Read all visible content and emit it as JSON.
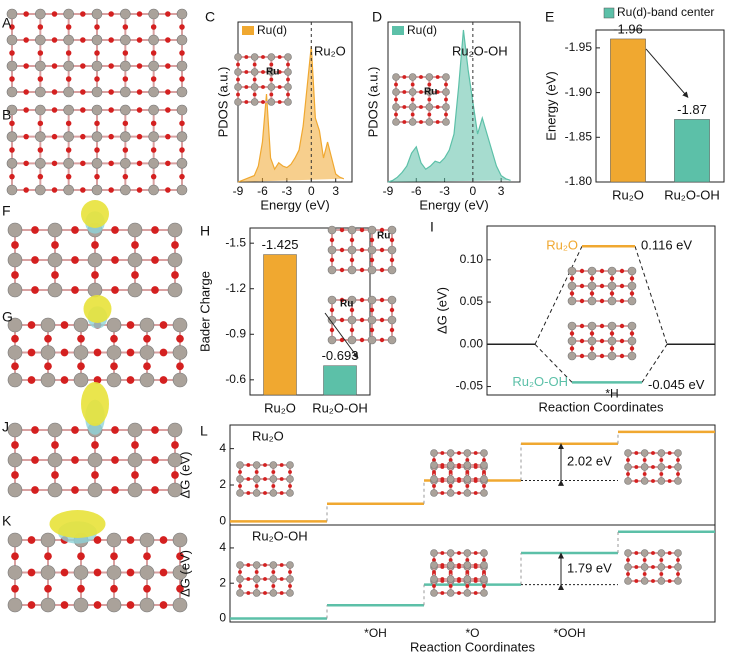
{
  "structure_panels": [
    "A",
    "B",
    "F",
    "G",
    "J",
    "K"
  ],
  "chart_data": [
    {
      "type": "area",
      "panel": "C",
      "annotation": "Ru₂O",
      "inset_labels": [
        "Ru"
      ],
      "ylabel": "PDOS (a.u.)",
      "xlabel": "Energy (eV)",
      "x": [
        -9,
        -8.5,
        -8,
        -7.5,
        -7,
        -6.5,
        -6,
        -5.5,
        -5,
        -4.5,
        -4,
        -3.5,
        -3,
        -2.5,
        -2,
        -1.5,
        -1,
        -0.5,
        0,
        0.5,
        1,
        1.5,
        2,
        2.5,
        3,
        3.5,
        4
      ],
      "series": [
        {
          "name": "Ru(d)",
          "color": "#f0a830",
          "values": [
            0,
            0.1,
            0.2,
            0.3,
            0.4,
            1.0,
            2.5,
            5.5,
            1.5,
            0.8,
            1.2,
            1.0,
            0.9,
            1.1,
            1.5,
            2.0,
            3.5,
            6,
            8.5,
            4,
            3.2,
            1.5,
            2.5,
            1.5,
            0.5,
            0.3,
            0.2
          ]
        }
      ],
      "xlim": [
        -9,
        5
      ],
      "xticks": [
        -9,
        -6,
        -3,
        0,
        3
      ],
      "ylim": [
        0,
        10
      ]
    },
    {
      "type": "area",
      "panel": "D",
      "annotation": "Ru₂O-OH",
      "inset_labels": [
        "Ru"
      ],
      "ylabel": "PDOS (a.u.)",
      "xlabel": "Energy (eV)",
      "x": [
        -9,
        -8.5,
        -8,
        -7.5,
        -7,
        -6.5,
        -6,
        -5.5,
        -5,
        -4.5,
        -4,
        -3.5,
        -3,
        -2.5,
        -2,
        -1.5,
        -1,
        -0.5,
        0,
        0.5,
        1,
        1.5,
        2,
        2.5,
        3,
        3.5,
        4
      ],
      "series": [
        {
          "name": "Ru(d)",
          "color": "#5cc0a8",
          "values": [
            0,
            0.1,
            0.3,
            0.6,
            1.0,
            1.8,
            2.2,
            1.2,
            0.8,
            1.0,
            1.3,
            1.2,
            1.5,
            2.0,
            3,
            6,
            9.5,
            7,
            5,
            3,
            4,
            3,
            2,
            1,
            0.4,
            0.2,
            0.1
          ]
        }
      ],
      "xlim": [
        -9,
        5
      ],
      "xticks": [
        -9,
        -6,
        -3,
        0,
        3
      ],
      "ylim": [
        0,
        10
      ]
    },
    {
      "type": "bar",
      "panel": "E",
      "ylabel": "Energy (eV)",
      "legend": "Ru(d)-band center",
      "categories": [
        "Ru₂O",
        "Ru₂O-OH"
      ],
      "values": [
        -1.96,
        -1.87
      ],
      "colors": [
        "#f0a830",
        "#5cc0a8"
      ],
      "ylim": [
        -1.8,
        -1.97
      ],
      "yticks": [
        {
          "value": -1.8,
          "label": "-1.80"
        },
        -1.85,
        {
          "value": -1.9,
          "label": "-1.90"
        },
        -1.95
      ]
    },
    {
      "type": "bar",
      "panel": "H",
      "ylabel": "Bader Charge",
      "inset_labels": [
        "Ru",
        "Ru"
      ],
      "categories": [
        "Ru₂O",
        "Ru₂O-OH"
      ],
      "values": [
        -1.425,
        -0.693
      ],
      "colors": [
        "#f0a830",
        "#5cc0a8"
      ],
      "ylim": [
        -0.5,
        -1.6
      ],
      "yticks": [
        -1.5,
        -1.2,
        -0.9,
        -0.6
      ]
    },
    {
      "type": "level",
      "panel": "I",
      "ylabel": "ΔG (eV)",
      "xlabel": "Reaction Coordinates",
      "annotation": "*H",
      "series": [
        {
          "name": "Ru₂O",
          "color": "#f0a830",
          "values": [
            0.116
          ],
          "value_labels": [
            "0.116 eV"
          ]
        },
        {
          "name": "Ru₂O-OH",
          "color": "#5cc0a8",
          "values": [
            -0.045
          ],
          "value_labels": [
            "-0.045 eV"
          ]
        }
      ],
      "ylim": [
        -0.06,
        0.14
      ],
      "yticks": [
        {
          "value": 0.1,
          "label": "0.10"
        },
        {
          "value": 0.05,
          "label": "0.05"
        },
        {
          "value": 0,
          "label": "0.00"
        },
        {
          "value": -0.05,
          "label": "-0.05"
        }
      ]
    },
    {
      "type": "step",
      "panel": "L",
      "ylabel": "ΔG (eV)",
      "annotation": "2.02 eV",
      "series": [
        {
          "name": "Ru₂O",
          "color": "#f0a830",
          "values": [
            0,
            0.97,
            2.25,
            4.27,
            4.92
          ]
        }
      ],
      "ylim": [
        -0.2,
        5.3
      ],
      "yticks": [
        0,
        2,
        4
      ]
    },
    {
      "type": "step",
      "ylabel": "ΔG (eV)",
      "annotation": "1.79 eV",
      "xlabel": "Reaction Coordinates",
      "categories": [
        null,
        "*OH",
        "*O",
        "*OOH",
        null
      ],
      "series": [
        {
          "name": "Ru₂O-OH",
          "color": "#5cc0a8",
          "values": [
            0,
            0.75,
            1.92,
            3.71,
            4.92
          ]
        }
      ],
      "ylim": [
        -0.2,
        5.3
      ],
      "yticks": [
        0,
        2,
        4
      ]
    }
  ]
}
